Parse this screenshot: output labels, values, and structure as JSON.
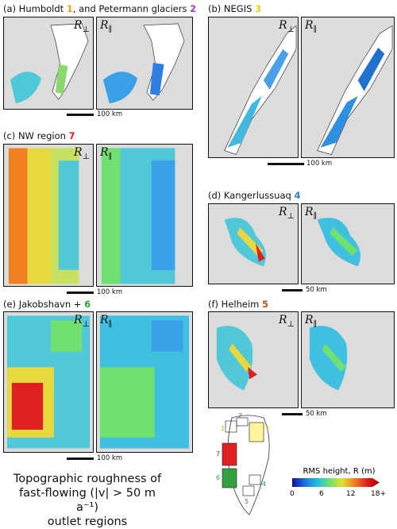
{
  "panels": [
    {
      "id": "a",
      "prefix": "(a) Humboldt ",
      "num1": "1",
      "mid": ", and Petermann glaciers ",
      "num2": "2",
      "color1": "#f0a020",
      "color2": "#9a3fbf",
      "scale": "100 km"
    },
    {
      "id": "b",
      "prefix": "(b) NEGIS ",
      "num1": "3",
      "color1": "#e6d400",
      "scale": "100 km"
    },
    {
      "id": "c",
      "prefix": "(c) NW region ",
      "num1": "7",
      "color1": "#e02020",
      "scale": "100 km"
    },
    {
      "id": "d",
      "prefix": "(d) Kangerlussuaq ",
      "num1": "4",
      "color1": "#2a7fc0",
      "scale": "50 km"
    },
    {
      "id": "e",
      "prefix": "(e) Jakobshavn + ",
      "num1": "6",
      "color1": "#30a040",
      "scale": "100 km"
    },
    {
      "id": "f",
      "prefix": "(f) Helheim ",
      "num1": "5",
      "color1": "#c05020",
      "scale": "50 km"
    }
  ],
  "labels": {
    "r_perp": "R",
    "perp": "⊥",
    "r_par": "R",
    "par": "∥"
  },
  "caption": {
    "line1": "Topographic roughness of",
    "line2": "fast-flowing (|v| > 50 m a⁻¹)",
    "line3": "outlet regions"
  },
  "colorbar": {
    "title": "RMS height, R (m)",
    "ticks": [
      "0",
      "6",
      "12",
      "18+"
    ],
    "colors": [
      "#1010a0",
      "#1e6fe0",
      "#20c0e0",
      "#70e070",
      "#e0e030",
      "#f08020",
      "#e02020",
      "#a00000"
    ]
  },
  "inset_numbers": [
    "1",
    "2",
    "3",
    "4",
    "5",
    "6",
    "7"
  ]
}
